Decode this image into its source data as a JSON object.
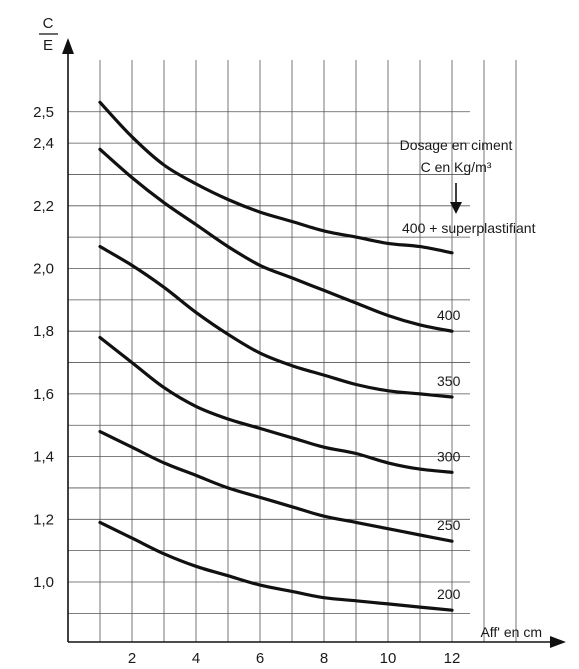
{
  "chart_data": {
    "type": "line",
    "ylabel_top": "C",
    "ylabel_bottom": "E",
    "xlabel": "Aff' en cm",
    "annotation_line1": "Dosage en ciment",
    "annotation_line2": "C en Kg/m³",
    "xlim": [
      0,
      13
    ],
    "ylim": [
      0.9,
      2.55
    ],
    "grid": true,
    "x_ticks": [
      "2",
      "4",
      "6",
      "8",
      "10",
      "12"
    ],
    "y_ticks": [
      "1,0",
      "1,2",
      "1,4",
      "1,6",
      "1,8",
      "2,0",
      "2,2",
      "2,4",
      "2,5"
    ],
    "series": [
      {
        "name": "400 + superplastifiant",
        "x": [
          1,
          2,
          3,
          4,
          5,
          6,
          7,
          8,
          9,
          10,
          11,
          12
        ],
        "y": [
          2.53,
          2.42,
          2.33,
          2.27,
          2.22,
          2.18,
          2.15,
          2.12,
          2.1,
          2.08,
          2.07,
          2.05
        ]
      },
      {
        "name": "400",
        "x": [
          1,
          2,
          3,
          4,
          5,
          6,
          7,
          8,
          9,
          10,
          11,
          12
        ],
        "y": [
          2.38,
          2.29,
          2.21,
          2.14,
          2.07,
          2.01,
          1.97,
          1.93,
          1.89,
          1.85,
          1.82,
          1.8
        ]
      },
      {
        "name": "350",
        "x": [
          1,
          2,
          3,
          4,
          5,
          6,
          7,
          8,
          9,
          10,
          11,
          12
        ],
        "y": [
          2.07,
          2.01,
          1.94,
          1.86,
          1.79,
          1.73,
          1.69,
          1.66,
          1.63,
          1.61,
          1.6,
          1.59
        ]
      },
      {
        "name": "300",
        "x": [
          1,
          2,
          3,
          4,
          5,
          6,
          7,
          8,
          9,
          10,
          11,
          12
        ],
        "y": [
          1.78,
          1.7,
          1.62,
          1.56,
          1.52,
          1.49,
          1.46,
          1.43,
          1.41,
          1.38,
          1.36,
          1.35
        ]
      },
      {
        "name": "250",
        "x": [
          1,
          2,
          3,
          4,
          5,
          6,
          7,
          8,
          9,
          10,
          11,
          12
        ],
        "y": [
          1.48,
          1.43,
          1.38,
          1.34,
          1.3,
          1.27,
          1.24,
          1.21,
          1.19,
          1.17,
          1.15,
          1.13
        ]
      },
      {
        "name": "200",
        "x": [
          1,
          2,
          3,
          4,
          5,
          6,
          7,
          8,
          9,
          10,
          11,
          12
        ],
        "y": [
          1.19,
          1.14,
          1.09,
          1.05,
          1.02,
          0.99,
          0.97,
          0.95,
          0.94,
          0.93,
          0.92,
          0.91
        ]
      }
    ]
  }
}
